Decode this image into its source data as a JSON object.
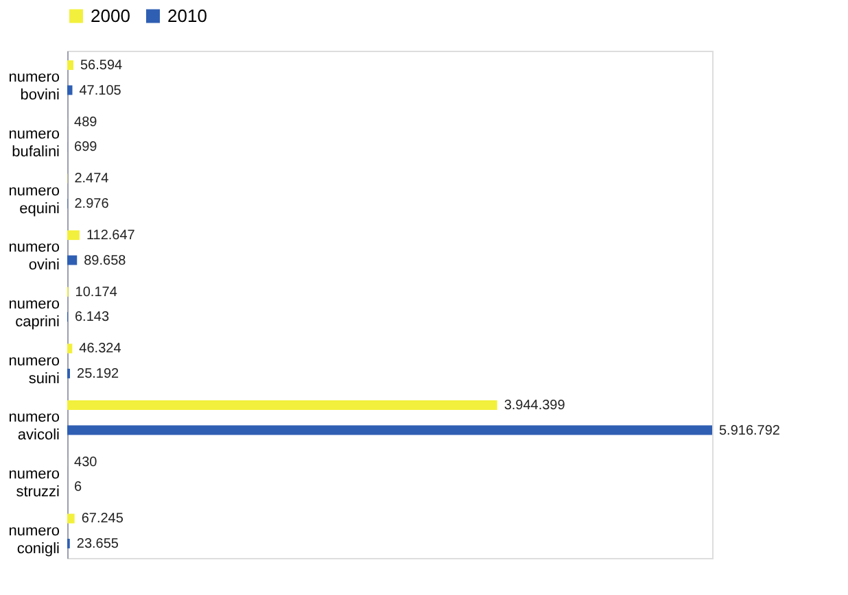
{
  "chart_data": {
    "type": "bar",
    "orientation": "horizontal",
    "categories": [
      "numero bovini",
      "numero bufalini",
      "numero equini",
      "numero ovini",
      "numero caprini",
      "numero suini",
      "numero avicoli",
      "numero struzzi",
      "numero conigli"
    ],
    "series": [
      {
        "name": "2000",
        "color": "#f2f03c",
        "values": [
          56594,
          489,
          2474,
          112647,
          10174,
          46324,
          3944399,
          430,
          67245
        ],
        "value_labels": [
          "56.594",
          "489",
          "2.474",
          "112.647",
          "10.174",
          "46.324",
          "3.944.399",
          "430",
          "67.245"
        ]
      },
      {
        "name": "2010",
        "color": "#2f5fb3",
        "values": [
          47105,
          699,
          2976,
          89658,
          6143,
          25192,
          5916792,
          6,
          23655
        ],
        "value_labels": [
          "47.105",
          "699",
          "2.976",
          "89.658",
          "6.143",
          "25.192",
          "5.916.792",
          "6",
          "23.655"
        ]
      }
    ],
    "legend": "top",
    "grid": false
  }
}
